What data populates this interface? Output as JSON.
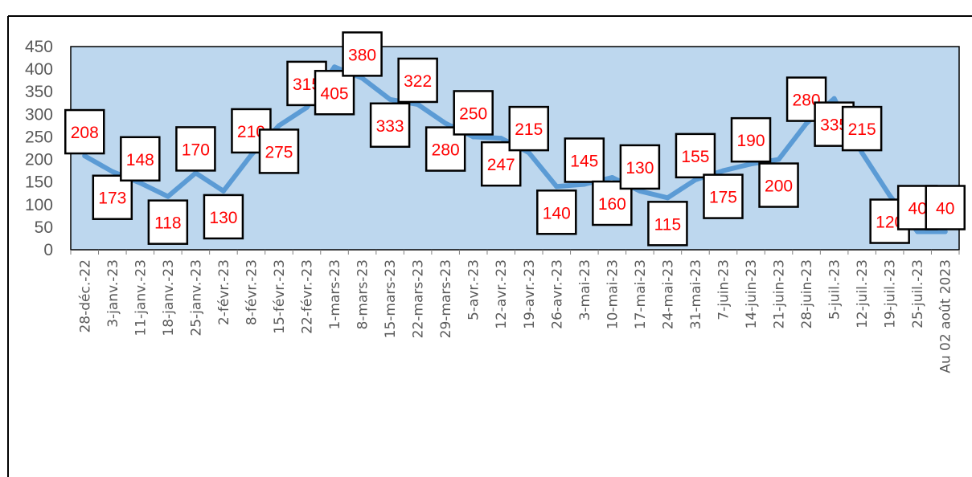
{
  "chart_data": {
    "type": "line",
    "title": "",
    "xlabel": "",
    "ylabel": "",
    "ylim": [
      0,
      450
    ],
    "yticks": [
      0,
      50,
      100,
      150,
      200,
      250,
      300,
      350,
      400,
      450
    ],
    "grid": false,
    "legend": "none",
    "colors": {
      "plot_bg": "#bdd7ee",
      "line": "#5b9bd5",
      "label_text": "#ff0000",
      "label_border": "#000000",
      "axis_text": "#595959"
    },
    "categories": [
      "28-déc.-22",
      "3-janv.-23",
      "11-janv.-23",
      "18-janv.-23",
      "25-janv.-23",
      "2-févr.-23",
      "8-févr.-23",
      "15-févr.-23",
      "22-févr.-23",
      "1-mars-23",
      "8-mars-23",
      "15-mars-23",
      "22-mars-23",
      "29-mars-23",
      "5-avr.-23",
      "12-avr.-23",
      "19-avr.-23",
      "26-avr.-23",
      "3-mai-23",
      "10-mai-23",
      "17-mai-23",
      "24-mai-23",
      "31-mai-23",
      "7-juin-23",
      "14-juin-23",
      "21-juin-23",
      "28-juin-23",
      "5-juil.-23",
      "12-juil.-23",
      "19-juil.-23",
      "25-juil.-23",
      "Au 02 août 2023"
    ],
    "series": [
      {
        "values": [
          208,
          173,
          148,
          118,
          170,
          130,
          210,
          275,
          315,
          405,
          380,
          333,
          322,
          280,
          250,
          247,
          215,
          140,
          145,
          160,
          130,
          115,
          155,
          175,
          190,
          200,
          280,
          335,
          215,
          120,
          40,
          40
        ]
      }
    ]
  }
}
